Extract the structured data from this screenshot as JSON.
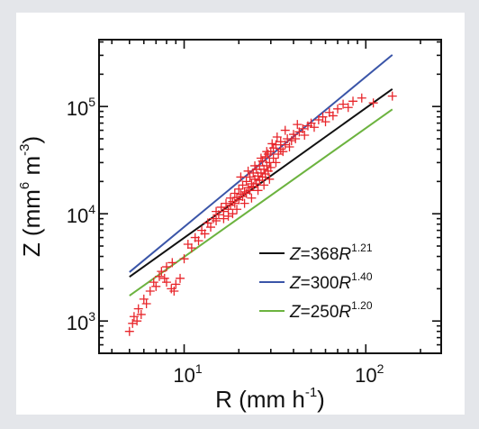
{
  "chart_data": {
    "type": "scatter",
    "xlabel": {
      "base": "R (mm h",
      "sup": "-1",
      "close": ")"
    },
    "ylabel": {
      "base": "Z (mm",
      "sup1": "6",
      "mid": " m",
      "sup2": "-3",
      "close": ")"
    },
    "x_scale": "log",
    "y_scale": "log",
    "xlim": [
      3.4,
      260
    ],
    "ylim": [
      500,
      420000
    ],
    "x_ticks": [
      {
        "base": "10",
        "exp": "1",
        "value": 10
      },
      {
        "base": "10",
        "exp": "2",
        "value": 100
      }
    ],
    "y_ticks": [
      {
        "base": "10",
        "exp": "3",
        "value": 1000
      },
      {
        "base": "10",
        "exp": "4",
        "value": 10000
      },
      {
        "base": "10",
        "exp": "5",
        "value": 100000
      }
    ],
    "legend_position": "bottom-right",
    "series": [
      {
        "kind": "line",
        "color": "#111111",
        "coef": 368,
        "exp": 1.21,
        "label": {
          "prefix": "Z",
          "eq": "=368",
          "var": "R",
          "sup": "1.21"
        }
      },
      {
        "kind": "line",
        "color": "#3a55a8",
        "coef": 300,
        "exp": 1.4,
        "label": {
          "prefix": "Z",
          "eq": "=300",
          "var": "R",
          "sup": "1.40"
        }
      },
      {
        "kind": "line",
        "color": "#6cb33f",
        "coef": 250,
        "exp": 1.2,
        "label": {
          "prefix": "Z",
          "eq": "=250",
          "var": "R",
          "sup": "1.20"
        }
      }
    ],
    "line_x_range": [
      5,
      140
    ],
    "scatter_color": "#e8262b",
    "scatter_points": [
      [
        5.0,
        800
      ],
      [
        5.2,
        950
      ],
      [
        5.3,
        1100
      ],
      [
        5.5,
        1000
      ],
      [
        5.6,
        1300
      ],
      [
        5.8,
        1150
      ],
      [
        6.0,
        1600
      ],
      [
        6.2,
        1450
      ],
      [
        6.5,
        1900
      ],
      [
        6.8,
        2300
      ],
      [
        7.0,
        2100
      ],
      [
        7.3,
        2600
      ],
      [
        7.5,
        2900
      ],
      [
        7.8,
        2500
      ],
      [
        8.0,
        2300
      ],
      [
        8.0,
        3200
      ],
      [
        8.5,
        2000
      ],
      [
        8.6,
        3500
      ],
      [
        8.8,
        1900
      ],
      [
        9.0,
        2200
      ],
      [
        9.5,
        2500
      ],
      [
        10.0,
        3800
      ],
      [
        10.5,
        5200
      ],
      [
        11.0,
        4800
      ],
      [
        11.5,
        6000
      ],
      [
        12.0,
        5600
      ],
      [
        12.5,
        7000
      ],
      [
        13.0,
        6500
      ],
      [
        13.5,
        8200
      ],
      [
        14.0,
        7500
      ],
      [
        14.5,
        9000
      ],
      [
        15.0,
        8600
      ],
      [
        15.0,
        10500
      ],
      [
        15.5,
        9800
      ],
      [
        16.0,
        11500
      ],
      [
        16.5,
        10500
      ],
      [
        17.0,
        12500
      ],
      [
        17.5,
        11000
      ],
      [
        18.0,
        14000
      ],
      [
        18.0,
        12000
      ],
      [
        18.5,
        13000
      ],
      [
        19.0,
        15500
      ],
      [
        19.0,
        12500
      ],
      [
        19.5,
        14200
      ],
      [
        20.0,
        17000
      ],
      [
        20.0,
        13500
      ],
      [
        20.5,
        15200
      ],
      [
        21.0,
        18500
      ],
      [
        21.0,
        14500
      ],
      [
        21.5,
        16000
      ],
      [
        22.0,
        20000
      ],
      [
        22.0,
        15500
      ],
      [
        22.5,
        17500
      ],
      [
        23.0,
        22000
      ],
      [
        23.0,
        16500
      ],
      [
        23.5,
        19000
      ],
      [
        24.0,
        24000
      ],
      [
        24.0,
        18000
      ],
      [
        24.5,
        21000
      ],
      [
        25.0,
        26000
      ],
      [
        25.0,
        19000
      ],
      [
        25.5,
        22500
      ],
      [
        26.0,
        28000
      ],
      [
        26.0,
        20500
      ],
      [
        26.5,
        24000
      ],
      [
        27.0,
        31000
      ],
      [
        27.0,
        22000
      ],
      [
        27.5,
        26000
      ],
      [
        28.0,
        34000
      ],
      [
        28.0,
        23500
      ],
      [
        28.5,
        28000
      ],
      [
        29.0,
        36000
      ],
      [
        29.0,
        25000
      ],
      [
        29.5,
        30000
      ],
      [
        30.0,
        38000
      ],
      [
        30.0,
        27000
      ],
      [
        31.0,
        33000
      ],
      [
        31.0,
        41000
      ],
      [
        32.0,
        30000
      ],
      [
        32.0,
        44000
      ],
      [
        33.0,
        36000
      ],
      [
        34.0,
        40000
      ],
      [
        34.0,
        47000
      ],
      [
        35.0,
        38000
      ],
      [
        36.0,
        44000
      ],
      [
        37.0,
        50000
      ],
      [
        38.0,
        42000
      ],
      [
        39.0,
        48000
      ],
      [
        40.0,
        55000
      ],
      [
        41.0,
        50000
      ],
      [
        43.0,
        58000
      ],
      [
        45.0,
        62000
      ],
      [
        46.0,
        54000
      ],
      [
        48.0,
        66000
      ],
      [
        50.0,
        70000
      ],
      [
        52.0,
        64000
      ],
      [
        55.0,
        75000
      ],
      [
        58.0,
        80000
      ],
      [
        60.0,
        72000
      ],
      [
        63.0,
        88000
      ],
      [
        66.0,
        82000
      ],
      [
        70.0,
        95000
      ],
      [
        75.0,
        105000
      ],
      [
        80.0,
        98000
      ],
      [
        85.0,
        112000
      ],
      [
        95.0,
        120000
      ],
      [
        110.0,
        108000
      ],
      [
        140.0,
        125000
      ],
      [
        19.5,
        11000
      ],
      [
        21.5,
        12500
      ],
      [
        23.5,
        14000
      ],
      [
        25.5,
        16500
      ],
      [
        27.5,
        18500
      ],
      [
        29.5,
        21000
      ],
      [
        16.5,
        9000
      ],
      [
        17.5,
        9500
      ],
      [
        18.5,
        10000
      ],
      [
        20.5,
        22000
      ],
      [
        22.5,
        25000
      ],
      [
        24.5,
        28000
      ],
      [
        26.5,
        33000
      ],
      [
        28.5,
        38000
      ],
      [
        30.5,
        45000
      ],
      [
        32.5,
        52000
      ],
      [
        36.0,
        60000
      ],
      [
        42.0,
        68000
      ]
    ]
  }
}
